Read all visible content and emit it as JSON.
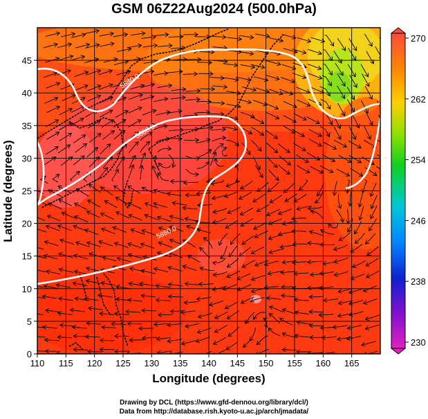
{
  "title": "GSM 06Z22Aug2024 (500.0hPa)",
  "xlabel": "Longitude (degrees)",
  "ylabel": "Latitude (degrees)",
  "credit_line1": "Drawing by DCL (https://www.gfd-dennou.org/library/dcl/)",
  "credit_line2": "Data from http://database.rish.kyoto-u.ac.jp/arch/jmadata/",
  "map": {
    "lon_range": [
      110,
      170
    ],
    "lat_range": [
      0,
      50
    ],
    "lon_ticks": [
      "110",
      "115",
      "120",
      "125",
      "130",
      "135",
      "140",
      "145",
      "150",
      "155",
      "160",
      "165"
    ],
    "lat_ticks": [
      "0",
      "5",
      "10",
      "15",
      "20",
      "25",
      "30",
      "35",
      "40",
      "45"
    ],
    "contour_labels": [
      "5880.0",
      "5880.0",
      "5880.0"
    ],
    "colors": {
      "warm": "#ff3d00",
      "orange": "#ff6a00",
      "pink": "#ff5a5a",
      "yellow": "#f2d21a",
      "green": "#9ce21a",
      "contour": "#ffffff",
      "coast": "#000000"
    }
  },
  "colorbar": {
    "min": 230,
    "max": 270,
    "tick_labels": [
      "270",
      "262",
      "254",
      "246",
      "238",
      "230"
    ]
  }
}
